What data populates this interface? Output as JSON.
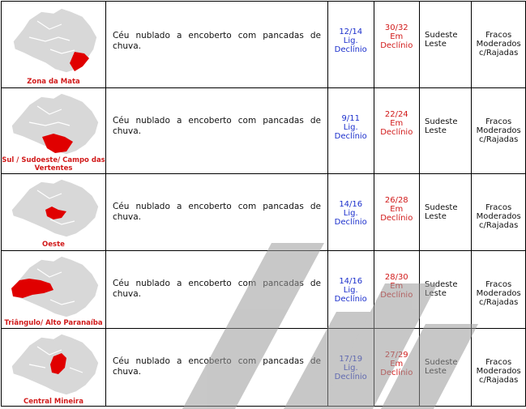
{
  "rows": [
    {
      "region": "Zona da Mata",
      "condition": "Céu nublado a encoberto com pancadas de chuva.",
      "tmin": "12/14",
      "tmin_trend": "Lig. Declínio",
      "tmax": "30/32",
      "tmax_trend": "Em Declínio",
      "wind_dir": "Sudeste Leste",
      "wind_speed": "Fracos Moderados c/Rajadas"
    },
    {
      "region": "Sul / Sudoeste/ Campo das Vertentes",
      "condition": "Céu nublado a encoberto com pancadas de chuva.",
      "tmin": "9/11",
      "tmin_trend": "Lig. Declínio",
      "tmax": "22/24",
      "tmax_trend": "Em Declínio",
      "wind_dir": "Sudeste Leste",
      "wind_speed": "Fracos Moderados c/Rajadas"
    },
    {
      "region": "Oeste",
      "condition": "Céu nublado a encoberto com pancadas de chuva.",
      "tmin": "14/16",
      "tmin_trend": "Lig. Declínio",
      "tmax": "26/28",
      "tmax_trend": "Em Declínio",
      "wind_dir": "Sudeste Leste",
      "wind_speed": "Fracos Moderados c/Rajadas"
    },
    {
      "region": "Triângulo/ Alto Paranaíba",
      "condition": "Céu nublado a encoberto com pancadas de chuva.",
      "tmin": "14/16",
      "tmin_trend": "Lig. Declínio",
      "tmax": "28/30",
      "tmax_trend": "Em Declínio",
      "wind_dir": "Sudeste Leste",
      "wind_speed": "Fracos Moderados c/Rajadas"
    },
    {
      "region": "Central Mineira",
      "condition": "Céu nublado a encoberto com pancadas de chuva.",
      "tmin": "17/19",
      "tmin_trend": "Lig. Declínio",
      "tmax": "27/29",
      "tmax_trend": "Em Declínio",
      "wind_dir": "Sudeste Leste",
      "wind_speed": "Fracos Moderados c/Rajadas"
    }
  ],
  "colors": {
    "min_temp": "#1b2fcc",
    "max_temp": "#d11a1a",
    "region_label": "#d11a1a",
    "highlight": "#e00000",
    "map_base": "#d8d8d8",
    "watermark": "#9a9a9a"
  },
  "watermark_text": "INMET"
}
